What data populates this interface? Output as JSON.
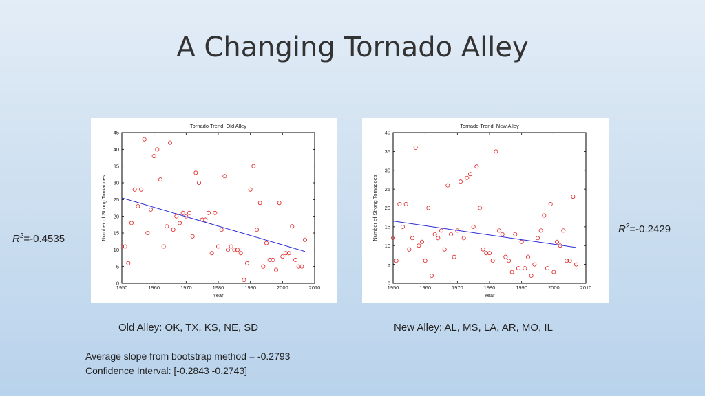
{
  "slide": {
    "title": "A Changing Tornado Alley",
    "r2_old_letter": "R",
    "r2_old_sup": "2",
    "r2_old_value": "=-0.4535",
    "r2_new_letter": "R",
    "r2_new_sup": "2",
    "r2_new_value": "=-0.2429",
    "caption_old": "Old Alley: OK, TX, KS, NE, SD",
    "caption_new": "New Alley: AL, MS, LA, AR, MO, IL",
    "slope_text": "Average slope from bootstrap method = -0.2793",
    "ci_text": "Confidence Interval: [-0.2843  -0.2743]"
  },
  "colors": {
    "points": "#e02020",
    "trend": "#2b2bd4",
    "axis": "#000000"
  },
  "chart_data": [
    {
      "type": "scatter",
      "title": "Tornado Trend: Old Alley",
      "xlabel": "Year",
      "ylabel": "Number of Strong Tornadoes",
      "xlim": [
        1950,
        2010
      ],
      "ylim": [
        0,
        45
      ],
      "xticks": [
        1950,
        1960,
        1970,
        1980,
        1990,
        2000,
        2010
      ],
      "yticks": [
        0,
        5,
        10,
        15,
        20,
        25,
        30,
        35,
        40,
        45
      ],
      "points": [
        [
          1950,
          11
        ],
        [
          1951,
          11
        ],
        [
          1952,
          6
        ],
        [
          1953,
          18
        ],
        [
          1954,
          28
        ],
        [
          1955,
          23
        ],
        [
          1956,
          28
        ],
        [
          1957,
          43
        ],
        [
          1958,
          15
        ],
        [
          1959,
          22
        ],
        [
          1960,
          38
        ],
        [
          1961,
          40
        ],
        [
          1962,
          31
        ],
        [
          1963,
          11
        ],
        [
          1964,
          17
        ],
        [
          1965,
          42
        ],
        [
          1966,
          16
        ],
        [
          1967,
          20
        ],
        [
          1968,
          18
        ],
        [
          1969,
          21
        ],
        [
          1970,
          20
        ],
        [
          1971,
          21
        ],
        [
          1972,
          14
        ],
        [
          1973,
          33
        ],
        [
          1974,
          30
        ],
        [
          1975,
          19
        ],
        [
          1976,
          19
        ],
        [
          1977,
          21
        ],
        [
          1978,
          9
        ],
        [
          1979,
          21
        ],
        [
          1980,
          11
        ],
        [
          1981,
          16
        ],
        [
          1982,
          32
        ],
        [
          1983,
          10
        ],
        [
          1984,
          11
        ],
        [
          1985,
          10
        ],
        [
          1986,
          10
        ],
        [
          1987,
          9
        ],
        [
          1988,
          1
        ],
        [
          1989,
          6
        ],
        [
          1990,
          28
        ],
        [
          1991,
          35
        ],
        [
          1992,
          16
        ],
        [
          1993,
          24
        ],
        [
          1994,
          5
        ],
        [
          1995,
          12
        ],
        [
          1996,
          7
        ],
        [
          1997,
          7
        ],
        [
          1998,
          4
        ],
        [
          1999,
          24
        ],
        [
          2000,
          8
        ],
        [
          2001,
          9
        ],
        [
          2002,
          9
        ],
        [
          2003,
          17
        ],
        [
          2004,
          7
        ],
        [
          2005,
          5
        ],
        [
          2006,
          5
        ],
        [
          2007,
          13
        ]
      ],
      "trendline": {
        "x": [
          1950,
          2007
        ],
        "y": [
          25.5,
          9.5
        ]
      }
    },
    {
      "type": "scatter",
      "title": "Tornado Trend: New Alley",
      "xlabel": "Year",
      "ylabel": "Number of Strong Tornadoes",
      "xlim": [
        1950,
        2010
      ],
      "ylim": [
        0,
        40
      ],
      "xticks": [
        1950,
        1960,
        1970,
        1980,
        1990,
        2000,
        2010
      ],
      "yticks": [
        0,
        5,
        10,
        15,
        20,
        25,
        30,
        35,
        40
      ],
      "points": [
        [
          1950,
          12
        ],
        [
          1951,
          6
        ],
        [
          1952,
          21
        ],
        [
          1953,
          15
        ],
        [
          1954,
          21
        ],
        [
          1955,
          9
        ],
        [
          1956,
          12
        ],
        [
          1957,
          36
        ],
        [
          1958,
          10
        ],
        [
          1959,
          11
        ],
        [
          1960,
          6
        ],
        [
          1961,
          20
        ],
        [
          1962,
          2
        ],
        [
          1963,
          13
        ],
        [
          1964,
          12
        ],
        [
          1965,
          14
        ],
        [
          1966,
          9
        ],
        [
          1967,
          26
        ],
        [
          1968,
          13
        ],
        [
          1969,
          7
        ],
        [
          1970,
          14
        ],
        [
          1971,
          27
        ],
        [
          1972,
          12
        ],
        [
          1973,
          28
        ],
        [
          1974,
          29
        ],
        [
          1975,
          15
        ],
        [
          1976,
          31
        ],
        [
          1977,
          20
        ],
        [
          1978,
          9
        ],
        [
          1979,
          8
        ],
        [
          1980,
          8
        ],
        [
          1981,
          6
        ],
        [
          1982,
          35
        ],
        [
          1983,
          14
        ],
        [
          1984,
          13
        ],
        [
          1985,
          7
        ],
        [
          1986,
          6
        ],
        [
          1987,
          3
        ],
        [
          1988,
          13
        ],
        [
          1989,
          4
        ],
        [
          1990,
          11
        ],
        [
          1991,
          4
        ],
        [
          1992,
          7
        ],
        [
          1993,
          2
        ],
        [
          1994,
          5
        ],
        [
          1995,
          12
        ],
        [
          1996,
          14
        ],
        [
          1997,
          18
        ],
        [
          1998,
          4
        ],
        [
          1999,
          21
        ],
        [
          2000,
          3
        ],
        [
          2001,
          11
        ],
        [
          2002,
          10
        ],
        [
          2003,
          14
        ],
        [
          2004,
          6
        ],
        [
          2005,
          6
        ],
        [
          2006,
          23
        ],
        [
          2007,
          5
        ]
      ],
      "trendline": {
        "x": [
          1950,
          2007
        ],
        "y": [
          16.5,
          9.5
        ]
      }
    }
  ]
}
